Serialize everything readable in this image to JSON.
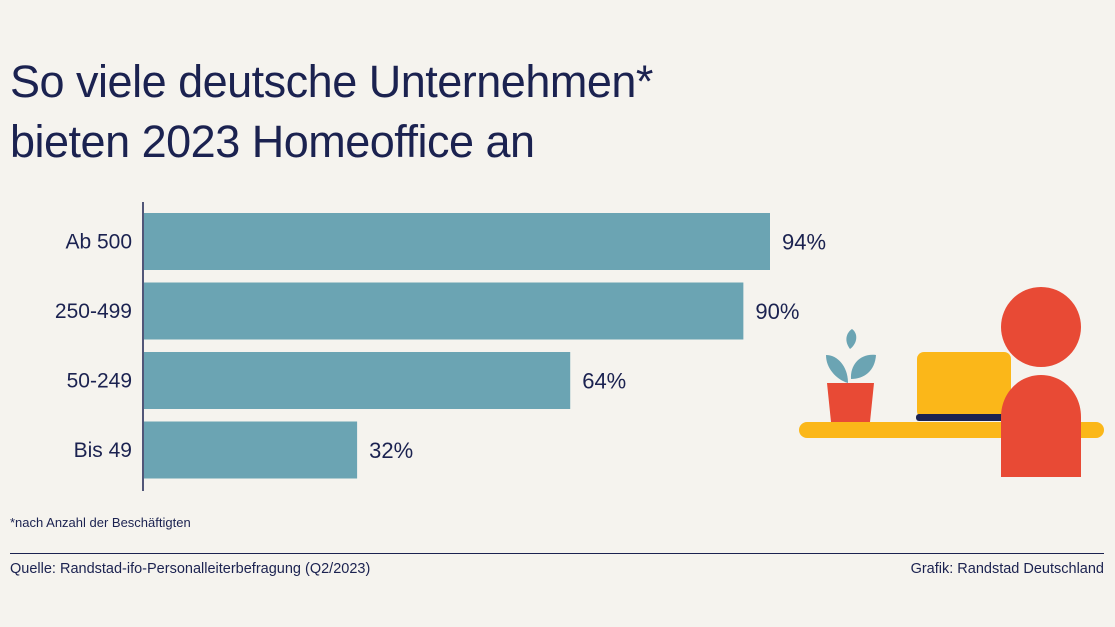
{
  "title": {
    "line1": "So viele deutsche Unternehmen*",
    "line2": "bieten 2023 Homeoffice an"
  },
  "chart_data": {
    "type": "bar",
    "orientation": "horizontal",
    "categories": [
      "Ab 500",
      "250-499",
      "50-249",
      "Bis 49"
    ],
    "values": [
      94,
      90,
      64,
      32
    ],
    "value_labels": [
      "94%",
      "90%",
      "64%",
      "32%"
    ],
    "unit": "%",
    "xlim": [
      0,
      100
    ],
    "bar_color": "#6ba4b3",
    "grid": false
  },
  "footnote": "*nach Anzahl der Beschäftigten",
  "source": "Quelle: Randstad-ifo-Personalleiterbefragung (Q2/2023)",
  "credit": "Grafik: Randstad Deutschland",
  "illustration": {
    "icons": [
      "plant-icon",
      "laptop-icon",
      "person-icon",
      "desk-icon"
    ],
    "colors": {
      "person": "#e84a35",
      "laptop": "#fbb719",
      "desk": "#fbb719",
      "pot": "#e84a35",
      "leaves": "#6ba4b3",
      "keyboard": "#1b2250"
    }
  }
}
